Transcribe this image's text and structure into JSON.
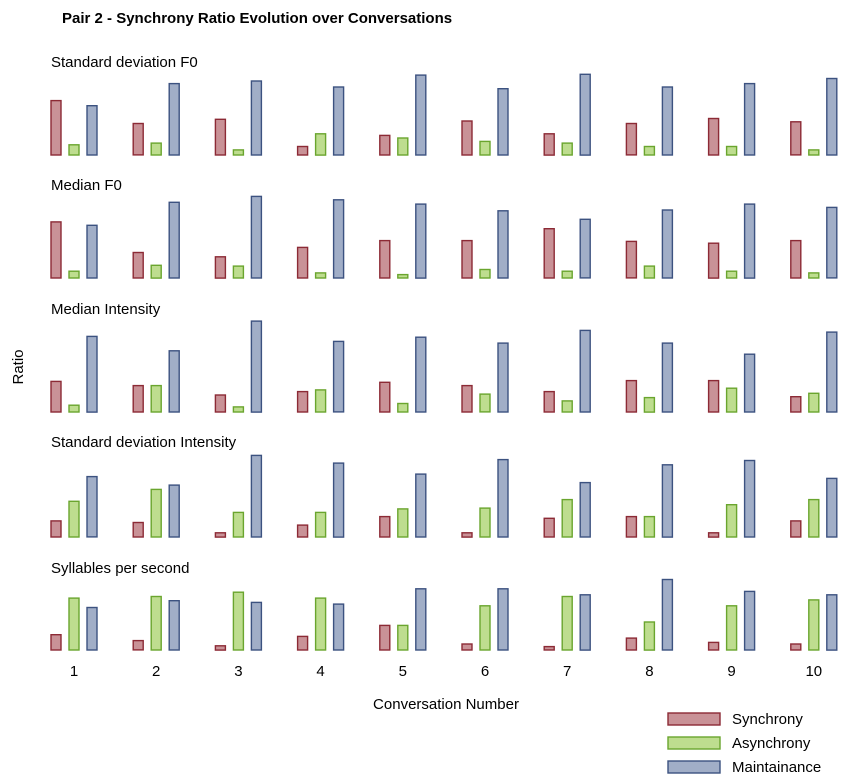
{
  "chart_data": {
    "type": "bar",
    "title": "Pair 2 - Synchrony Ratio Evolution over Conversations",
    "xlabel": "Conversation Number",
    "ylabel": "Ratio",
    "categories": [
      "1",
      "2",
      "3",
      "4",
      "5",
      "6",
      "7",
      "8",
      "9",
      "10"
    ],
    "legend": {
      "position": "bottom-right",
      "entries": [
        "Synchrony",
        "Asynchrony",
        "Maintainance"
      ]
    },
    "colors": {
      "Synchrony": {
        "fill": "#c99297",
        "stroke": "#8c2a35"
      },
      "Asynchrony": {
        "fill": "#bedd8f",
        "stroke": "#6aa52e"
      },
      "Maintainance": {
        "fill": "#a1aec7",
        "stroke": "#3c5280"
      }
    },
    "grid": false,
    "panels": [
      {
        "title": "Standard deviation F0",
        "series": [
          {
            "name": "Synchrony",
            "values": [
              0.64,
              0.37,
              0.42,
              0.1,
              0.23,
              0.4,
              0.25,
              0.37,
              0.43,
              0.39
            ]
          },
          {
            "name": "Asynchrony",
            "values": [
              0.12,
              0.14,
              0.06,
              0.25,
              0.2,
              0.16,
              0.14,
              0.1,
              0.1,
              0.06
            ]
          },
          {
            "name": "Maintainance",
            "values": [
              0.58,
              0.84,
              0.87,
              0.8,
              0.94,
              0.78,
              0.95,
              0.8,
              0.84,
              0.9
            ]
          }
        ]
      },
      {
        "title": "Median F0",
        "series": [
          {
            "name": "Synchrony",
            "values": [
              0.66,
              0.3,
              0.25,
              0.36,
              0.44,
              0.44,
              0.58,
              0.43,
              0.41,
              0.44
            ]
          },
          {
            "name": "Asynchrony",
            "values": [
              0.08,
              0.15,
              0.14,
              0.06,
              0.04,
              0.1,
              0.08,
              0.14,
              0.08,
              0.06
            ]
          },
          {
            "name": "Maintainance",
            "values": [
              0.62,
              0.89,
              0.96,
              0.92,
              0.87,
              0.79,
              0.69,
              0.8,
              0.87,
              0.83
            ]
          }
        ]
      },
      {
        "title": "Median Intensity",
        "series": [
          {
            "name": "Synchrony",
            "values": [
              0.36,
              0.31,
              0.2,
              0.24,
              0.35,
              0.31,
              0.24,
              0.37,
              0.37,
              0.18
            ]
          },
          {
            "name": "Asynchrony",
            "values": [
              0.08,
              0.31,
              0.06,
              0.26,
              0.1,
              0.21,
              0.13,
              0.17,
              0.28,
              0.22
            ]
          },
          {
            "name": "Maintainance",
            "values": [
              0.89,
              0.72,
              1.07,
              0.83,
              0.88,
              0.81,
              0.96,
              0.81,
              0.68,
              0.94
            ]
          }
        ]
      },
      {
        "title": "Standard deviation Intensity",
        "series": [
          {
            "name": "Synchrony",
            "values": [
              0.19,
              0.17,
              0.05,
              0.14,
              0.24,
              0.05,
              0.22,
              0.24,
              0.05,
              0.19
            ]
          },
          {
            "name": "Asynchrony",
            "values": [
              0.42,
              0.56,
              0.29,
              0.29,
              0.33,
              0.34,
              0.44,
              0.24,
              0.38,
              0.44
            ]
          },
          {
            "name": "Maintainance",
            "values": [
              0.71,
              0.61,
              0.96,
              0.87,
              0.74,
              0.91,
              0.64,
              0.85,
              0.9,
              0.69
            ]
          }
        ]
      },
      {
        "title": "Syllables per second",
        "series": [
          {
            "name": "Synchrony",
            "values": [
              0.18,
              0.11,
              0.05,
              0.16,
              0.29,
              0.07,
              0.04,
              0.14,
              0.09,
              0.07
            ]
          },
          {
            "name": "Asynchrony",
            "values": [
              0.61,
              0.63,
              0.68,
              0.61,
              0.29,
              0.52,
              0.63,
              0.33,
              0.52,
              0.59
            ]
          },
          {
            "name": "Maintainance",
            "values": [
              0.5,
              0.58,
              0.56,
              0.54,
              0.72,
              0.72,
              0.65,
              0.83,
              0.69,
              0.65
            ]
          }
        ]
      }
    ]
  }
}
